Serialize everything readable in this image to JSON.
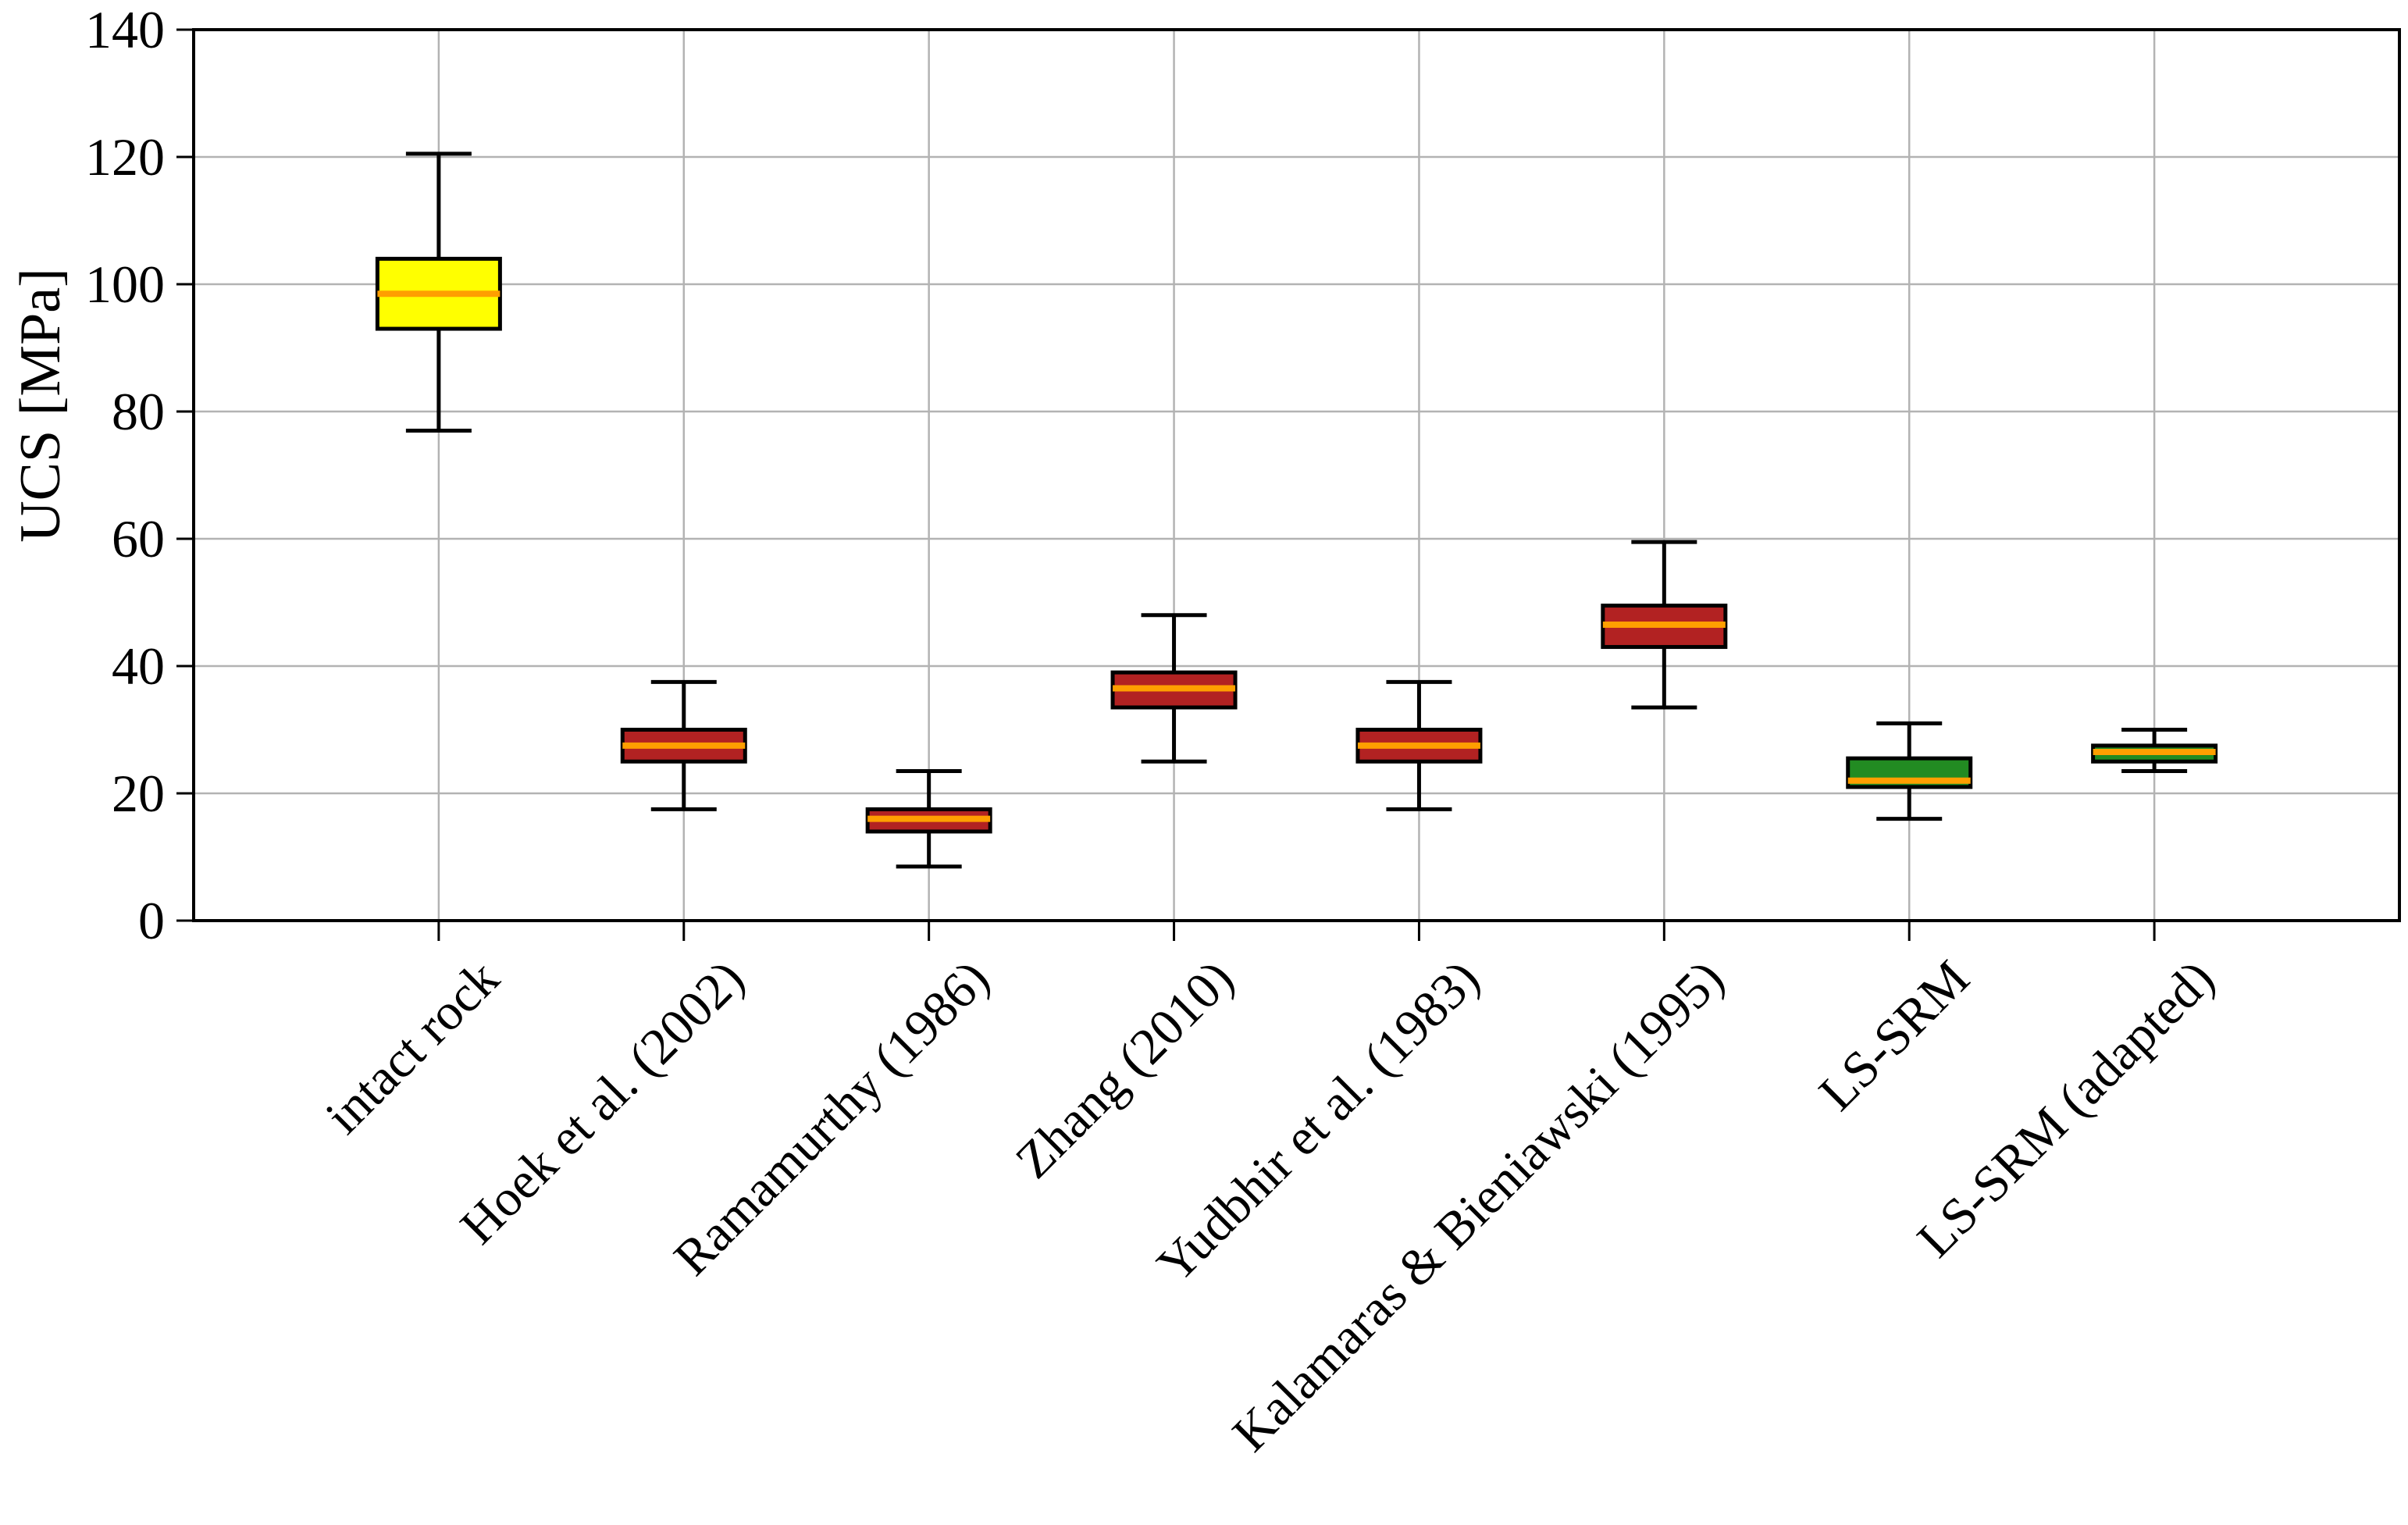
{
  "chart_data": {
    "type": "box",
    "title": "",
    "ylabel": "UCS [MPa]",
    "xlabel": "",
    "ylim": [
      0,
      140
    ],
    "yticks": [
      0,
      20,
      40,
      60,
      80,
      100,
      120,
      140
    ],
    "grid": true,
    "legend": "none",
    "categories": [
      "intact rock",
      "Hoek et al. (2002)",
      "Ramamurthy (1986)",
      "Zhang (2010)",
      "Yudbhir et al. (1983)",
      "Kalamaras & Bieniawski (1995)",
      "LS-SRM",
      "LS-SRM (adapted)"
    ],
    "series": [
      {
        "name": "intact rock",
        "slug": "intact-rock",
        "whisker_low": 77,
        "q1": 93,
        "median": 98.5,
        "q3": 104,
        "whisker_high": 120.5,
        "fill": "#ffff00"
      },
      {
        "name": "Hoek et al. (2002)",
        "slug": "hoek-et-al-2002",
        "whisker_low": 17.5,
        "q1": 25,
        "median": 27.5,
        "q3": 30,
        "whisker_high": 37.5,
        "fill": "#b22222"
      },
      {
        "name": "Ramamurthy (1986)",
        "slug": "ramamurthy-1986",
        "whisker_low": 8.5,
        "q1": 14,
        "median": 16,
        "q3": 17.5,
        "whisker_high": 23.5,
        "fill": "#b22222"
      },
      {
        "name": "Zhang (2010)",
        "slug": "zhang-2010",
        "whisker_low": 25,
        "q1": 33.5,
        "median": 36.5,
        "q3": 39,
        "whisker_high": 48,
        "fill": "#b22222"
      },
      {
        "name": "Yudbhir et al. (1983)",
        "slug": "yudbhir-et-al-1983",
        "whisker_low": 17.5,
        "q1": 25,
        "median": 27.5,
        "q3": 30,
        "whisker_high": 37.5,
        "fill": "#b22222"
      },
      {
        "name": "Kalamaras & Bieniawski (1995)",
        "slug": "kalamaras-bieniawski-1995",
        "whisker_low": 33.5,
        "q1": 43,
        "median": 46.5,
        "q3": 49.5,
        "whisker_high": 59.5,
        "fill": "#b22222"
      },
      {
        "name": "LS-SRM",
        "slug": "ls-srm",
        "whisker_low": 16,
        "q1": 21,
        "median": 22,
        "q3": 25.5,
        "whisker_high": 31,
        "fill": "#228b22"
      },
      {
        "name": "LS-SRM (adapted)",
        "slug": "ls-srm-adapted",
        "whisker_low": 23.5,
        "q1": 25,
        "median": 26.5,
        "q3": 27.5,
        "whisker_high": 30,
        "fill": "#228b22"
      }
    ],
    "colors": {
      "median_line": "#ff9f00",
      "box_edge": "#000000",
      "whisker": "#000000",
      "grid_line": "#b3b3b3",
      "axis": "#000000",
      "background": "#ffffff",
      "box_yellow": "#ffff00",
      "box_red": "#b22222",
      "box_green": "#228b22"
    }
  }
}
